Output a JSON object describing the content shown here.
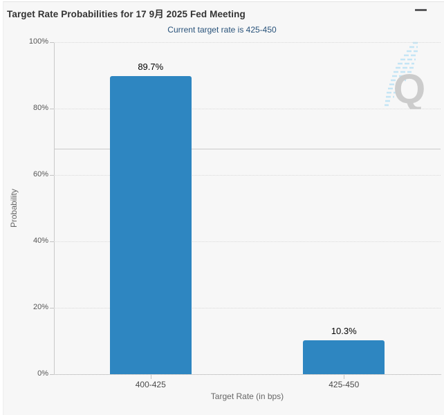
{
  "header": {
    "title": "Target Rate Probabilities for 17 9月 2025 Fed Meeting",
    "subtitle": "Current target rate is 425-450"
  },
  "icons": {
    "menu": "hamburger-icon",
    "watermark": "quikstrike-q-logo"
  },
  "chart_data": {
    "type": "bar",
    "title": "Target Rate Probabilities for 17 9月 2025 Fed Meeting",
    "subtitle": "Current target rate is 425-450",
    "categories": [
      "400-425",
      "425-450"
    ],
    "values": [
      89.7,
      10.3
    ],
    "data_labels": [
      "89.7%",
      "10.3%"
    ],
    "xlabel": "Target Rate (in bps)",
    "ylabel": "Probability",
    "ylim": [
      0,
      100
    ],
    "yticks": [
      0,
      20,
      40,
      60,
      80,
      100
    ],
    "ytick_labels": [
      "0%",
      "20%",
      "40%",
      "60%",
      "80%",
      "100%"
    ],
    "grid": "horizontal-dotted",
    "reference_line": 68,
    "legend": "none",
    "bar_color": "#2e86c1",
    "subtitle_color": "#28527a",
    "background_color": "#f7f7f7"
  }
}
